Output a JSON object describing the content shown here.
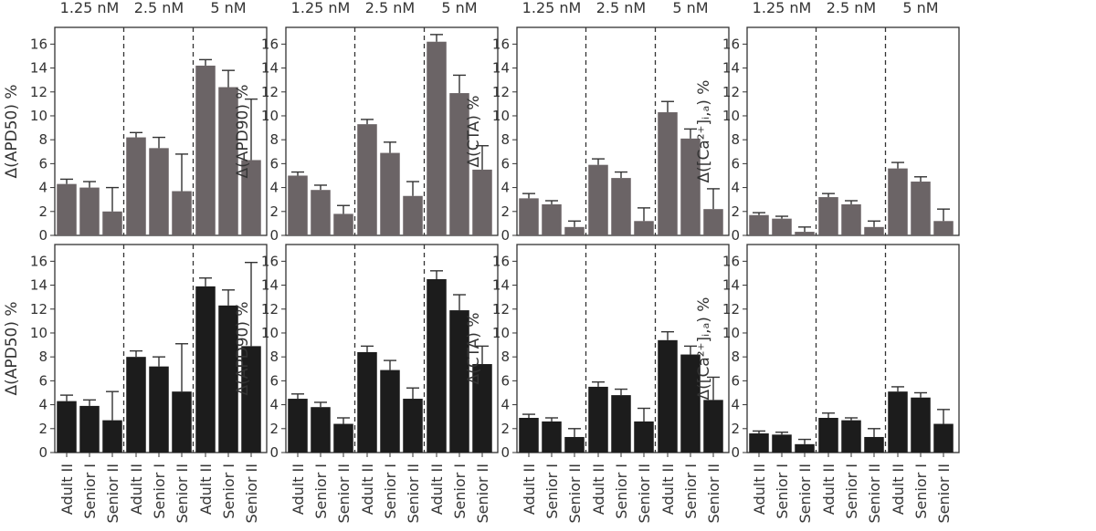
{
  "group_labels": [
    "1.25 nM",
    "2.5 nM",
    "5 nM"
  ],
  "categories": [
    "Adult II",
    "Senior I",
    "Senior II"
  ],
  "ylabels": [
    "Δ(APD50) %",
    "Δ(APD90) %",
    "Δ(CTA) %",
    "Δ([Ca²⁺]ᵢ,ₐ) %"
  ],
  "colors": {
    "top": "#6b6466",
    "bottom": "#1c1c1c",
    "error_bar": "#333333",
    "axis": "#333333"
  },
  "chart_data": [
    {
      "type": "bar",
      "panel": "top-APD50",
      "ylabel": "Δ(APD50) %",
      "ylim": [
        0,
        17.4
      ],
      "yticks": [
        0,
        2,
        4,
        6,
        8,
        10,
        12,
        14,
        16
      ],
      "groups": [
        "1.25 nM",
        "2.5 nM",
        "5 nM"
      ],
      "categories": [
        "Adult II",
        "Senior I",
        "Senior II"
      ],
      "values": [
        [
          4.3,
          4.0,
          2.0
        ],
        [
          8.2,
          7.3,
          3.7
        ],
        [
          14.2,
          12.4,
          6.3
        ]
      ],
      "errors": [
        [
          0.4,
          0.5,
          2.0
        ],
        [
          0.4,
          0.9,
          3.1
        ],
        [
          0.5,
          1.4,
          5.1
        ]
      ]
    },
    {
      "type": "bar",
      "panel": "top-APD90",
      "ylabel": "Δ(APD90) %",
      "ylim": [
        0,
        17.4
      ],
      "yticks": [
        0,
        2,
        4,
        6,
        8,
        10,
        12,
        14,
        16
      ],
      "groups": [
        "1.25 nM",
        "2.5 nM",
        "5 nM"
      ],
      "categories": [
        "Adult II",
        "Senior I",
        "Senior II"
      ],
      "values": [
        [
          5.0,
          3.8,
          1.8
        ],
        [
          9.3,
          6.9,
          3.3
        ],
        [
          16.2,
          11.9,
          5.5
        ]
      ],
      "errors": [
        [
          0.3,
          0.4,
          0.7
        ],
        [
          0.4,
          0.9,
          1.2
        ],
        [
          0.6,
          1.5,
          2.0
        ]
      ]
    },
    {
      "type": "bar",
      "panel": "top-CTA",
      "ylabel": "Δ(CTA) %",
      "ylim": [
        0,
        17.4
      ],
      "yticks": [
        0,
        2,
        4,
        6,
        8,
        10,
        12,
        14,
        16
      ],
      "groups": [
        "1.25 nM",
        "2.5 nM",
        "5 nM"
      ],
      "categories": [
        "Adult II",
        "Senior I",
        "Senior II"
      ],
      "values": [
        [
          3.1,
          2.6,
          0.7
        ],
        [
          5.9,
          4.8,
          1.2
        ],
        [
          10.3,
          8.1,
          2.2
        ]
      ],
      "errors": [
        [
          0.4,
          0.3,
          0.5
        ],
        [
          0.5,
          0.5,
          1.1
        ],
        [
          0.9,
          0.8,
          1.7
        ]
      ]
    },
    {
      "type": "bar",
      "panel": "top-Ca",
      "ylabel": "Δ([Ca²⁺]ᵢ,ₐ) %",
      "ylim": [
        0,
        17.4
      ],
      "yticks": [
        0,
        2,
        4,
        6,
        8,
        10,
        12,
        14,
        16
      ],
      "groups": [
        "1.25 nM",
        "2.5 nM",
        "5 nM"
      ],
      "categories": [
        "Adult II",
        "Senior I",
        "Senior II"
      ],
      "values": [
        [
          1.7,
          1.4,
          0.3
        ],
        [
          3.2,
          2.6,
          0.7
        ],
        [
          5.6,
          4.5,
          1.2
        ]
      ],
      "errors": [
        [
          0.2,
          0.2,
          0.4
        ],
        [
          0.3,
          0.3,
          0.5
        ],
        [
          0.5,
          0.4,
          1.0
        ]
      ]
    },
    {
      "type": "bar",
      "panel": "bottom-APD50",
      "ylabel": "Δ(APD50) %",
      "ylim": [
        0,
        17.4
      ],
      "yticks": [
        0,
        2,
        4,
        6,
        8,
        10,
        12,
        14,
        16
      ],
      "groups": [
        "1.25 nM",
        "2.5 nM",
        "5 nM"
      ],
      "categories": [
        "Adult II",
        "Senior I",
        "Senior II"
      ],
      "values": [
        [
          4.3,
          3.9,
          2.7
        ],
        [
          8.0,
          7.2,
          5.1
        ],
        [
          13.9,
          12.3,
          8.9
        ]
      ],
      "errors": [
        [
          0.5,
          0.5,
          2.4
        ],
        [
          0.5,
          0.8,
          4.0
        ],
        [
          0.7,
          1.3,
          7.0
        ]
      ]
    },
    {
      "type": "bar",
      "panel": "bottom-APD90",
      "ylabel": "Δ(APD90) %",
      "ylim": [
        0,
        17.4
      ],
      "yticks": [
        0,
        2,
        4,
        6,
        8,
        10,
        12,
        14,
        16
      ],
      "groups": [
        "1.25 nM",
        "2.5 nM",
        "5 nM"
      ],
      "categories": [
        "Adult II",
        "Senior I",
        "Senior II"
      ],
      "values": [
        [
          4.5,
          3.8,
          2.4
        ],
        [
          8.4,
          6.9,
          4.5
        ],
        [
          14.5,
          11.9,
          7.4
        ]
      ],
      "errors": [
        [
          0.4,
          0.4,
          0.5
        ],
        [
          0.5,
          0.8,
          0.9
        ],
        [
          0.7,
          1.3,
          1.5
        ]
      ]
    },
    {
      "type": "bar",
      "panel": "bottom-CTA",
      "ylabel": "Δ(CTA) %",
      "ylim": [
        0,
        17.4
      ],
      "yticks": [
        0,
        2,
        4,
        6,
        8,
        10,
        12,
        14,
        16
      ],
      "groups": [
        "1.25 nM",
        "2.5 nM",
        "5 nM"
      ],
      "categories": [
        "Adult II",
        "Senior I",
        "Senior II"
      ],
      "values": [
        [
          2.9,
          2.6,
          1.3
        ],
        [
          5.5,
          4.8,
          2.6
        ],
        [
          9.4,
          8.2,
          4.4
        ]
      ],
      "errors": [
        [
          0.3,
          0.3,
          0.7
        ],
        [
          0.4,
          0.5,
          1.1
        ],
        [
          0.7,
          0.7,
          1.9
        ]
      ]
    },
    {
      "type": "bar",
      "panel": "bottom-Ca",
      "ylabel": "Δ([Ca²⁺]ᵢ,ₐ) %",
      "ylim": [
        0,
        17.4
      ],
      "yticks": [
        0,
        2,
        4,
        6,
        8,
        10,
        12,
        14,
        16
      ],
      "groups": [
        "1.25 nM",
        "2.5 nM",
        "5 nM"
      ],
      "categories": [
        "Adult II",
        "Senior I",
        "Senior II"
      ],
      "values": [
        [
          1.6,
          1.5,
          0.7
        ],
        [
          2.9,
          2.7,
          1.3
        ],
        [
          5.1,
          4.6,
          2.4
        ]
      ],
      "errors": [
        [
          0.2,
          0.2,
          0.4
        ],
        [
          0.4,
          0.2,
          0.7
        ],
        [
          0.4,
          0.4,
          1.2
        ]
      ]
    }
  ]
}
